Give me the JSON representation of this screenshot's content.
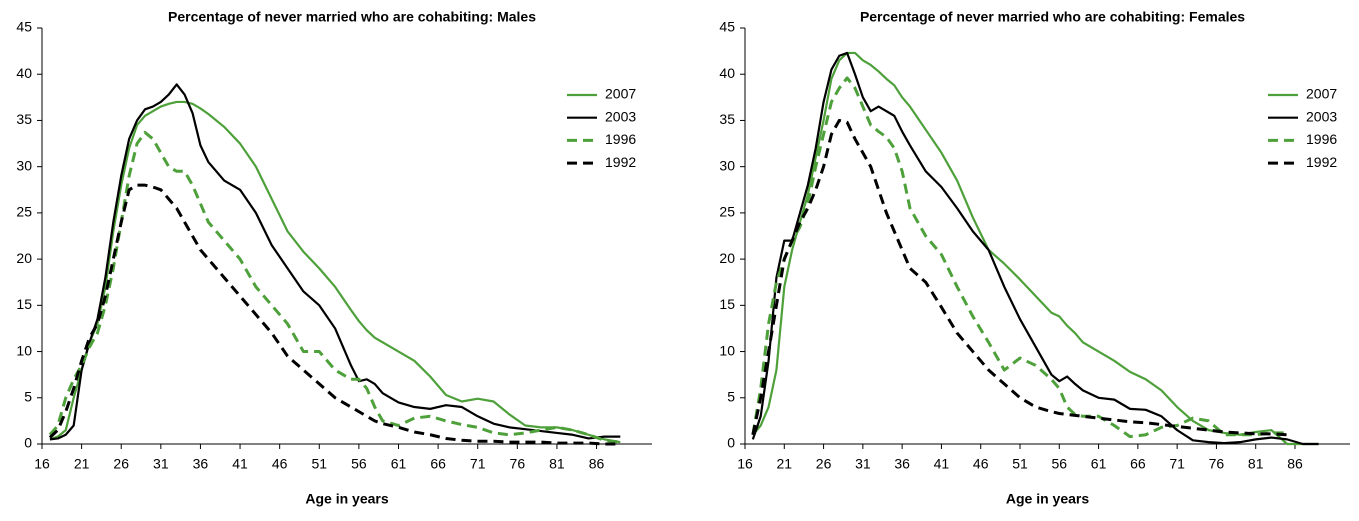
{
  "chart_data": [
    {
      "type": "line",
      "title": "Percentage of never married who are cohabiting: Males",
      "x_label": "Age in years",
      "xlim": [
        16,
        93
      ],
      "ylim": [
        0,
        45
      ],
      "xticks": [
        16,
        21,
        26,
        31,
        36,
        41,
        46,
        51,
        56,
        61,
        66,
        71,
        76,
        81,
        86
      ],
      "yticks": [
        0,
        5,
        10,
        15,
        20,
        25,
        30,
        35,
        40,
        45
      ],
      "x": [
        17,
        18,
        19,
        20,
        21,
        22,
        23,
        24,
        25,
        26,
        27,
        28,
        29,
        30,
        31,
        32,
        33,
        34,
        35,
        36,
        37,
        39,
        41,
        43,
        45,
        47,
        49,
        51,
        53,
        55,
        56,
        57,
        58,
        59,
        61,
        63,
        65,
        67,
        69,
        71,
        73,
        75,
        77,
        79,
        81,
        83,
        85,
        87,
        89
      ],
      "series": [
        {
          "name": "2007",
          "color": "#4ea03a",
          "dash": false,
          "values": [
            0.5,
            0.8,
            1.5,
            5,
            8,
            11,
            13,
            17,
            23,
            28,
            32,
            34.5,
            35.5,
            36,
            36.5,
            36.8,
            37,
            37,
            36.8,
            36.3,
            35.7,
            34.3,
            32.5,
            30,
            26.5,
            23,
            20.8,
            19,
            17,
            14.5,
            13.3,
            12.3,
            11.5,
            11,
            10,
            9,
            7.3,
            5.3,
            4.6,
            4.9,
            4.6,
            3.2,
            2,
            1.8,
            1.8,
            1.5,
            1,
            0.5,
            0.2
          ]
        },
        {
          "name": "2003",
          "color": "#000000",
          "dash": false,
          "values": [
            0.5,
            0.6,
            1,
            2,
            8,
            11,
            13.5,
            18,
            24,
            29,
            33,
            35,
            36.2,
            36.5,
            37,
            37.8,
            38.9,
            37.8,
            35.8,
            32.3,
            30.5,
            28.5,
            27.5,
            25,
            21.5,
            19,
            16.5,
            15,
            12.5,
            8.5,
            6.8,
            7,
            6.5,
            5.5,
            4.5,
            4,
            3.8,
            4.2,
            4,
            3,
            2.2,
            1.8,
            1.6,
            1.4,
            1.2,
            1,
            0.6,
            0.8,
            0.8
          ]
        },
        {
          "name": "1996",
          "color": "#4ea03a",
          "dash": true,
          "values": [
            1,
            2,
            5,
            7,
            8.5,
            10.5,
            12,
            15,
            19,
            24,
            29,
            32.5,
            33.7,
            33,
            31.5,
            30,
            29.5,
            29.5,
            28,
            26,
            24,
            22,
            20,
            17,
            15,
            13,
            10,
            10,
            8,
            7,
            7,
            6,
            4,
            2.5,
            2,
            2.8,
            3,
            2.5,
            2.1,
            1.8,
            1.2,
            1,
            1.2,
            1.5,
            1.8,
            1.5,
            1,
            0.4,
            0.2
          ]
        },
        {
          "name": "1992",
          "color": "#000000",
          "dash": true,
          "values": [
            0.7,
            1.5,
            3.5,
            6,
            9,
            11.5,
            13,
            16,
            20,
            24,
            27.5,
            28,
            28,
            27.8,
            27.5,
            26.5,
            25.5,
            24,
            22.5,
            21,
            20,
            18,
            16,
            14,
            12,
            9.5,
            8,
            6.5,
            5,
            4,
            3.5,
            3,
            2.5,
            2.2,
            1.8,
            1.3,
            1,
            0.6,
            0.4,
            0.3,
            0.3,
            0.2,
            0.2,
            0.2,
            0.1,
            0.1,
            0.1,
            0,
            0
          ]
        }
      ]
    },
    {
      "type": "line",
      "title": "Percentage of never married who are cohabiting: Females",
      "x_label": "Age in years",
      "xlim": [
        16,
        93
      ],
      "ylim": [
        0,
        45
      ],
      "xticks": [
        16,
        21,
        26,
        31,
        36,
        41,
        46,
        51,
        56,
        61,
        66,
        71,
        76,
        81,
        86
      ],
      "yticks": [
        0,
        5,
        10,
        15,
        20,
        25,
        30,
        35,
        40,
        45
      ],
      "x": [
        17,
        18,
        19,
        20,
        21,
        22,
        23,
        24,
        25,
        26,
        27,
        28,
        29,
        30,
        31,
        32,
        33,
        34,
        35,
        36,
        37,
        39,
        41,
        43,
        45,
        47,
        49,
        51,
        53,
        55,
        56,
        57,
        58,
        59,
        61,
        63,
        65,
        67,
        69,
        71,
        73,
        75,
        77,
        79,
        81,
        83,
        85,
        87,
        89
      ],
      "series": [
        {
          "name": "2007",
          "color": "#4ea03a",
          "dash": false,
          "values": [
            1,
            2,
            4,
            8,
            17,
            21,
            24,
            27,
            31,
            35,
            39.5,
            41.5,
            42.3,
            42.3,
            41.5,
            41,
            40.3,
            39.5,
            38.8,
            37.5,
            36.5,
            34,
            31.5,
            28.5,
            24.5,
            21,
            19.5,
            17.8,
            16,
            14.2,
            13.8,
            12.8,
            12,
            11,
            10,
            9,
            7.8,
            7,
            5.8,
            4,
            2.5,
            1.5,
            1.2,
            1,
            1.3,
            1.5,
            0,
            0,
            0
          ]
        },
        {
          "name": "2003",
          "color": "#000000",
          "dash": false,
          "values": [
            0.5,
            3,
            9,
            18,
            22,
            22,
            25,
            28,
            32,
            37,
            40.5,
            42,
            42.3,
            40,
            37.5,
            36,
            36.5,
            36,
            35.5,
            33.8,
            32.3,
            29.5,
            27.8,
            25.5,
            23,
            21,
            17,
            13.5,
            10.5,
            7.5,
            6.8,
            7.3,
            6.5,
            5.8,
            5,
            4.8,
            3.8,
            3.7,
            3,
            1.5,
            0.4,
            0.2,
            0.1,
            0.2,
            0.5,
            0.7,
            0.5,
            0,
            0
          ]
        },
        {
          "name": "1996",
          "color": "#4ea03a",
          "dash": true,
          "values": [
            1,
            6,
            13,
            17.5,
            20,
            22,
            23.5,
            26,
            30,
            33.5,
            37,
            38.5,
            39.6,
            38.5,
            36.5,
            34.5,
            33.8,
            33.2,
            32,
            29.5,
            25.5,
            22.5,
            20.5,
            17,
            13.8,
            11,
            8,
            9.3,
            8.5,
            7,
            6,
            4,
            3.2,
            3,
            3,
            2,
            0.8,
            1,
            1.8,
            2,
            2.8,
            2.5,
            1,
            1,
            1,
            1.2,
            1.2,
            null,
            null
          ]
        },
        {
          "name": "1992",
          "color": "#000000",
          "dash": true,
          "values": [
            1,
            5,
            10,
            15,
            20,
            22,
            24,
            25.5,
            27.5,
            30,
            33.5,
            35,
            34.8,
            33,
            31.5,
            30,
            27.5,
            25,
            23,
            21,
            19,
            17.5,
            14.8,
            12,
            10,
            8,
            6.5,
            5,
            4,
            3.5,
            3.3,
            3.2,
            3.1,
            3,
            2.8,
            2.6,
            2.4,
            2.3,
            2.1,
            1.9,
            1.7,
            1.5,
            1.3,
            1.2,
            1.1,
            1.1,
            1,
            null,
            null
          ]
        }
      ]
    }
  ]
}
